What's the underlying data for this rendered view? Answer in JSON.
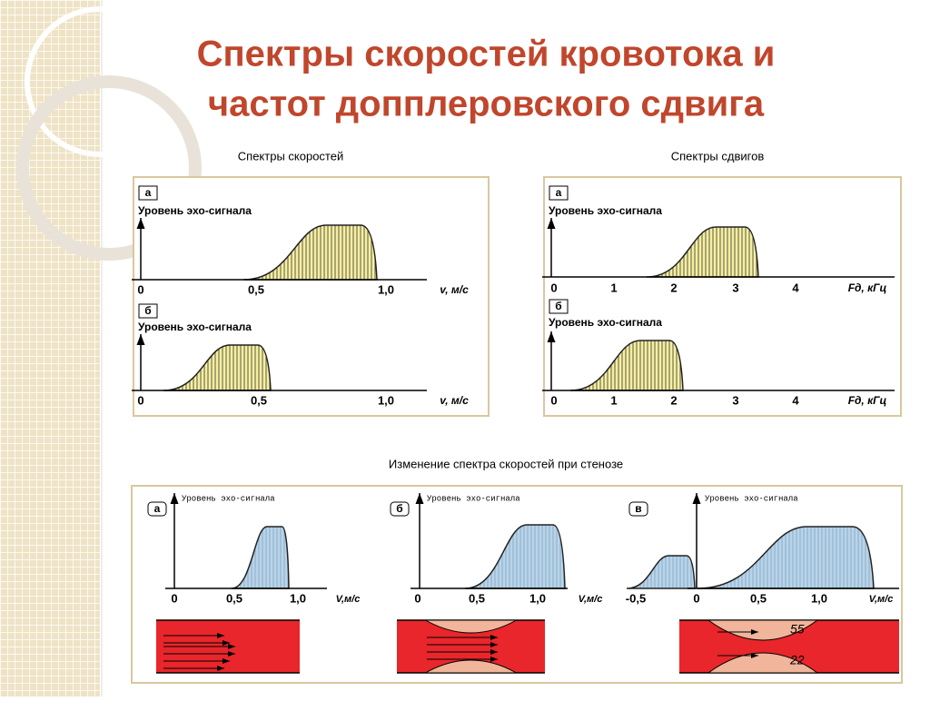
{
  "title": {
    "line1": "Спектры скоростей кровотока и",
    "line2": "частот допплеровского сдвига"
  },
  "speed": {
    "caption": "Спектры скоростей",
    "plots": [
      {
        "letter": "а",
        "ylabel": "Уровень эхо-сигнала",
        "ticks": [
          "0",
          "0,5",
          "1,0"
        ],
        "xlabel": "v, м/с"
      },
      {
        "letter": "б",
        "ylabel": "Уровень эхо-сигнала",
        "ticks": [
          "0",
          "0,5",
          "1,0"
        ],
        "xlabel": "v, м/с"
      }
    ]
  },
  "shift": {
    "caption": "Спектры сдвигов",
    "plots": [
      {
        "letter": "а",
        "ylabel": "Уровень эхо-сигнала",
        "ticks": [
          "0",
          "1",
          "2",
          "3",
          "4"
        ],
        "xlabel": "Fд, кГц"
      },
      {
        "letter": "б",
        "ylabel": "Уровень эхо-сигнала",
        "ticks": [
          "0",
          "1",
          "2",
          "3",
          "4"
        ],
        "xlabel": "Fд, кГц"
      }
    ]
  },
  "stenosis": {
    "caption": "Изменение спектра скоростей при стенозе",
    "plots": [
      {
        "letter": "а",
        "ylabel": "Уровень эхо-сигнала",
        "ticks": [
          "0",
          "0,5",
          "1,0"
        ],
        "xlabel": "V,м/с"
      },
      {
        "letter": "б",
        "ylabel": "Уровень эхо-сигнала",
        "ticks": [
          "0",
          "0,5",
          "1,0"
        ],
        "xlabel": "V,м/с"
      },
      {
        "letter": "в",
        "ylabel": "Уровень эхо-сигнала",
        "ticks": [
          "-0,5",
          "0",
          "0,5",
          "1,0"
        ],
        "xlabel": "V,м/с"
      }
    ],
    "annotations": [
      "55",
      "22"
    ]
  }
}
